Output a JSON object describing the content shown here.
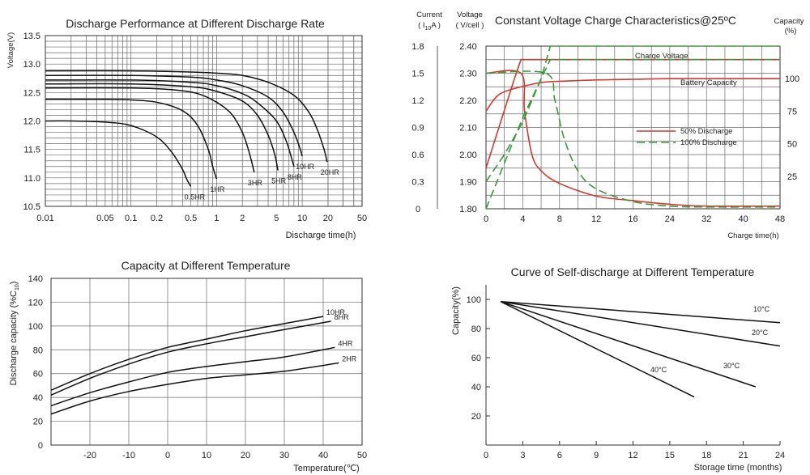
{
  "chart_data": [
    {
      "type": "line",
      "title": "Discharge Performance at Different Discharge Rate",
      "ylabel": "Voltage(V)",
      "xlabel": "Discharge time(h)",
      "x_scale": "log",
      "xlim": [
        0.01,
        50
      ],
      "ylim": [
        10.5,
        13.5
      ],
      "x_ticks": [
        0.01,
        0.05,
        0.1,
        0.2,
        0.5,
        1,
        2,
        5,
        10,
        20,
        50
      ],
      "x_tick_labels": [
        "0.01",
        "0.05",
        "0.1",
        "0.2",
        "0.5",
        "1",
        "2",
        "5",
        "10",
        "20",
        "50"
      ],
      "y_ticks": [
        10.5,
        11.0,
        11.5,
        12.0,
        12.5,
        13.0,
        13.5
      ],
      "y_tick_labels": [
        "10.5",
        "11.0",
        "11.5",
        "12.0",
        "12.5",
        "13.0",
        "13.5"
      ],
      "grid": true,
      "series": [
        {
          "name": "0.5HR",
          "x": [
            0.01,
            0.02,
            0.05,
            0.1,
            0.2,
            0.3,
            0.4,
            0.45,
            0.5
          ],
          "y": [
            12.0,
            12.0,
            11.98,
            11.92,
            11.72,
            11.45,
            11.15,
            10.97,
            10.85
          ]
        },
        {
          "name": "1HR",
          "x": [
            0.01,
            0.05,
            0.1,
            0.2,
            0.4,
            0.6,
            0.8,
            0.9,
            1.0
          ],
          "y": [
            12.38,
            12.38,
            12.37,
            12.33,
            12.18,
            11.92,
            11.5,
            11.2,
            10.98
          ]
        },
        {
          "name": "3HR",
          "x": [
            0.01,
            0.1,
            0.3,
            0.6,
            1.0,
            1.5,
            2.0,
            2.4,
            2.75
          ],
          "y": [
            12.58,
            12.58,
            12.55,
            12.48,
            12.33,
            12.12,
            11.8,
            11.45,
            11.1
          ]
        },
        {
          "name": "5HR",
          "x": [
            0.01,
            0.1,
            0.5,
            1.0,
            2.0,
            3.0,
            4.0,
            4.8,
            5.2
          ],
          "y": [
            12.65,
            12.65,
            12.6,
            12.52,
            12.35,
            12.1,
            11.75,
            11.4,
            11.13
          ]
        },
        {
          "name": "8HR",
          "x": [
            0.01,
            0.1,
            0.5,
            1.0,
            2.0,
            3.0,
            5.0,
            6.5,
            7.5,
            8.0
          ],
          "y": [
            12.72,
            12.72,
            12.68,
            12.62,
            12.48,
            12.32,
            12.0,
            11.65,
            11.35,
            11.2
          ]
        },
        {
          "name": "10HR",
          "x": [
            0.01,
            0.1,
            0.5,
            1.0,
            2.0,
            4.0,
            6.0,
            8.0,
            9.5,
            10.0
          ],
          "y": [
            12.8,
            12.8,
            12.77,
            12.72,
            12.62,
            12.42,
            12.15,
            11.8,
            11.5,
            11.38
          ]
        },
        {
          "name": "20HR",
          "x": [
            0.01,
            0.1,
            0.5,
            1.0,
            2.0,
            4.0,
            8.0,
            12.0,
            15.0,
            18.0,
            19.5
          ],
          "y": [
            12.88,
            12.88,
            12.86,
            12.84,
            12.8,
            12.68,
            12.45,
            12.15,
            11.85,
            11.5,
            11.28
          ]
        }
      ],
      "curve_labels": [
        "0.5HR",
        "1HR",
        "3HR",
        "5HR",
        "8HR",
        "10HR",
        "20HR"
      ]
    },
    {
      "type": "line",
      "title": "Constant Voltage Charge Characteristics@25ºC",
      "xlabel": "Charge time(h)",
      "x_ticks": [
        0,
        4,
        8,
        12,
        16,
        24,
        32,
        40,
        48
      ],
      "x_tick_labels": [
        "0",
        "4",
        "8",
        "12",
        "16",
        "24",
        "32",
        "40",
        "48"
      ],
      "left_axis_1": {
        "label_line1": "Current",
        "label_line2": "( I",
        "label_sub": "10",
        "label_tail": "A )",
        "ticks": [
          "1.8",
          "1.5",
          "1.2",
          "0.9",
          "0.6",
          "0.3",
          "0"
        ],
        "ylim": [
          0,
          1.8
        ]
      },
      "left_axis_2": {
        "label_line1": "Voltage",
        "label_line2": "( V/cell )",
        "ticks": [
          "2.40",
          "2.30",
          "2.20",
          "2.10",
          "2.00",
          "1.90",
          "1.80"
        ],
        "ylim": [
          1.8,
          2.4
        ]
      },
      "right_axis": {
        "label_line1": "Capacity",
        "label_line2": "(%)",
        "ticks": [
          "100",
          "75",
          "50",
          "25"
        ],
        "ylim": [
          0,
          125
        ]
      },
      "annotations": [
        "Charge Voltage",
        "Battery Capacity"
      ],
      "legend": {
        "placement": "center-right",
        "entries": [
          {
            "name": "50% Discharge",
            "color": "#d23a30",
            "dash": "solid"
          },
          {
            "name": "100% Discharge",
            "color": "#3a9a3a",
            "dash": "dashed"
          }
        ]
      },
      "grid": true,
      "series": [
        {
          "name": "50% Discharge",
          "quantity": "voltage",
          "x_h": [
            0,
            3,
            3.8,
            48
          ],
          "y": [
            1.95,
            2.27,
            2.35,
            2.35
          ]
        },
        {
          "name": "50% Discharge",
          "quantity": "current",
          "x_h": [
            0,
            3.8,
            4.2,
            5,
            6,
            8,
            12,
            16,
            24,
            32,
            48
          ],
          "y": [
            1.5,
            1.5,
            1.08,
            0.6,
            0.42,
            0.28,
            0.14,
            0.09,
            0.05,
            0.03,
            0.03
          ]
        },
        {
          "name": "50% Discharge",
          "quantity": "capacity",
          "x_h": [
            0,
            1,
            2,
            4,
            6,
            8,
            12,
            16,
            24,
            32,
            48
          ],
          "y": [
            75,
            85,
            90,
            94,
            97,
            98,
            99,
            99.5,
            100,
            100,
            100
          ]
        },
        {
          "name": "100% Discharge",
          "quantity": "voltage",
          "x_h": [
            0,
            2,
            4,
            6,
            7,
            48
          ],
          "y": [
            1.9,
            2.0,
            2.12,
            2.28,
            2.35,
            2.35
          ]
        },
        {
          "name": "100% Discharge",
          "quantity": "current",
          "x_h": [
            0,
            6.5,
            7.5,
            8.5,
            10,
            12,
            16,
            24,
            32,
            48
          ],
          "y": [
            1.5,
            1.5,
            1.2,
            0.78,
            0.42,
            0.22,
            0.08,
            0.03,
            0.02,
            0.02
          ]
        },
        {
          "name": "100% Discharge",
          "quantity": "capacity",
          "x_h": [
            0,
            2,
            4,
            6,
            7,
            48
          ],
          "y": [
            0,
            35,
            70,
            100,
            125,
            125
          ]
        }
      ]
    },
    {
      "type": "line",
      "title": "Capacity at Different Temperature",
      "ylabel": "Discharge capacity (%C",
      "ylabel_sub": "10",
      "ylabel_tail": ")",
      "xlabel": "Temperature(℃)",
      "xlim": [
        -30,
        50
      ],
      "ylim": [
        0,
        140
      ],
      "x_ticks": [
        -20,
        -10,
        0,
        10,
        20,
        30,
        40,
        50
      ],
      "x_tick_labels": [
        "-20",
        "-10",
        "0",
        "10",
        "20",
        "30",
        "40",
        "50"
      ],
      "y_ticks": [
        0,
        20,
        40,
        60,
        80,
        100,
        120,
        140
      ],
      "y_tick_labels": [
        "0",
        "20",
        "40",
        "60",
        "80",
        "100",
        "120",
        "140"
      ],
      "grid": true,
      "series": [
        {
          "name": "10HR",
          "x": [
            -30,
            -20,
            -10,
            0,
            10,
            20,
            30,
            40
          ],
          "y": [
            46,
            60,
            72,
            82,
            89,
            96,
            102,
            108
          ]
        },
        {
          "name": "8HR",
          "x": [
            -30,
            -20,
            -10,
            0,
            10,
            20,
            30,
            42
          ],
          "y": [
            42,
            56,
            68,
            78,
            85,
            91,
            97,
            104
          ]
        },
        {
          "name": "4HR",
          "x": [
            -30,
            -20,
            -10,
            0,
            10,
            20,
            30,
            43
          ],
          "y": [
            33,
            44,
            53,
            61,
            66,
            70,
            74,
            82
          ]
        },
        {
          "name": "2HR",
          "x": [
            -30,
            -20,
            -10,
            0,
            10,
            20,
            30,
            44
          ],
          "y": [
            26,
            37,
            45,
            51,
            56,
            59,
            62,
            69
          ]
        }
      ]
    },
    {
      "type": "line",
      "title": "Curve of Self-discharge at Different Temperature",
      "ylabel": "Capacity(%)",
      "xlabel": "Storage time (months)",
      "xlim": [
        0,
        24
      ],
      "ylim": [
        0,
        110
      ],
      "x_ticks": [
        0,
        3,
        6,
        9,
        12,
        15,
        18,
        21,
        24
      ],
      "x_tick_labels": [
        "0",
        "3",
        "6",
        "9",
        "12",
        "15",
        "18",
        "21",
        "24"
      ],
      "y_ticks": [
        20,
        40,
        60,
        80,
        100
      ],
      "y_tick_labels": [
        "20",
        "40",
        "60",
        "80",
        "100"
      ],
      "grid": false,
      "series": [
        {
          "name": "10°C",
          "x": [
            1.2,
            24
          ],
          "y": [
            98.5,
            84
          ]
        },
        {
          "name": "20°C",
          "x": [
            1.2,
            24
          ],
          "y": [
            98.5,
            68
          ]
        },
        {
          "name": "30°C",
          "x": [
            1.2,
            22
          ],
          "y": [
            98.5,
            40
          ]
        },
        {
          "name": "40°C",
          "x": [
            1.2,
            17
          ],
          "y": [
            98.5,
            33
          ]
        }
      ]
    }
  ]
}
